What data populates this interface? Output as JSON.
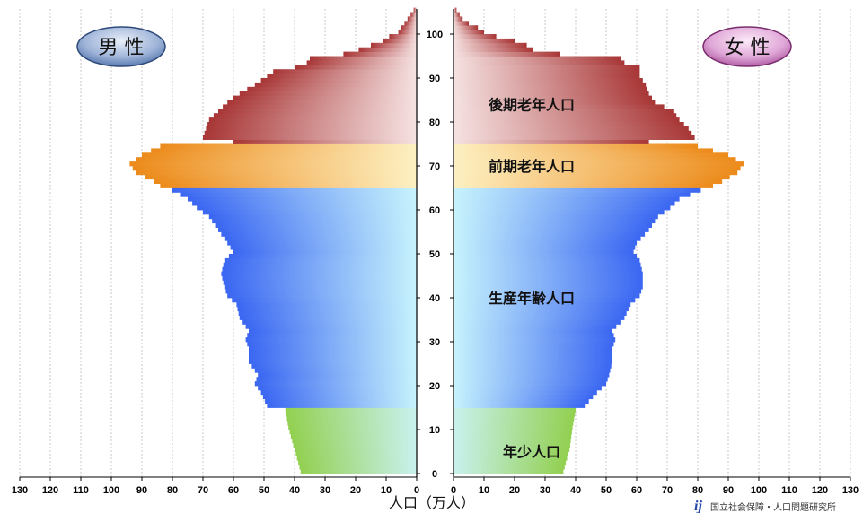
{
  "chart_data": {
    "type": "bar",
    "orientation": "horizontal-population-pyramid",
    "xlabel": "人口（万人）",
    "x_ticks_left": [
      "130",
      "120",
      "110",
      "100",
      "90",
      "80",
      "70",
      "60",
      "50",
      "40",
      "30",
      "20",
      "10",
      "0"
    ],
    "x_ticks_right": [
      "0",
      "10",
      "20",
      "30",
      "40",
      "50",
      "60",
      "70",
      "80",
      "90",
      "100",
      "110",
      "120",
      "130"
    ],
    "y_ticks": [
      "0",
      "10",
      "20",
      "30",
      "40",
      "50",
      "60",
      "70",
      "80",
      "90",
      "100"
    ],
    "xlim": [
      0,
      130
    ],
    "ylim": [
      0,
      105
    ],
    "grid": "vertical-dashed",
    "left_badge": "男 性",
    "right_badge": "女 性",
    "groups": [
      {
        "label": "年少人口",
        "age_from": 0,
        "age_to": 14,
        "color": "#92d050",
        "light": "#c9f1ee"
      },
      {
        "label": "生産年齢人口",
        "age_from": 15,
        "age_to": 64,
        "color": "#3a66f2",
        "light": "#c7f3fd"
      },
      {
        "label": "前期老年人口",
        "age_from": 65,
        "age_to": 74,
        "color": "#ec8a1a",
        "light": "#fdf0c2"
      },
      {
        "label": "後期老年人口",
        "age_from": 75,
        "age_to": 105,
        "color": "#a83636",
        "light": "#f6e2e2"
      }
    ],
    "series": [
      {
        "name": "男 性",
        "side": "left",
        "ages": [
          0,
          5,
          10,
          14,
          15,
          18,
          20,
          22,
          25,
          28,
          30,
          32,
          35,
          38,
          40,
          42,
          45,
          48,
          50,
          52,
          55,
          58,
          60,
          62,
          64,
          65,
          66,
          68,
          70,
          72,
          74,
          75,
          76,
          78,
          80,
          82,
          84,
          86,
          88,
          90,
          91,
          92,
          93,
          94,
          95,
          96,
          97,
          98,
          99,
          100,
          101,
          102,
          103,
          104,
          105
        ],
        "values": [
          38,
          40,
          42,
          43,
          49,
          51,
          53,
          52,
          55,
          55,
          56,
          55,
          58,
          59,
          62,
          63,
          64,
          63,
          60,
          62,
          65,
          68,
          72,
          75,
          80,
          84,
          86,
          92,
          94,
          90,
          84,
          60,
          70,
          69,
          68,
          65,
          62,
          58,
          53,
          49,
          47,
          40,
          36,
          35,
          24,
          19,
          15,
          11,
          9,
          6,
          5,
          4,
          3,
          2,
          1
        ]
      },
      {
        "name": "女 性",
        "side": "right",
        "ages": [
          0,
          5,
          10,
          14,
          15,
          18,
          20,
          22,
          25,
          28,
          30,
          32,
          35,
          38,
          40,
          42,
          45,
          48,
          50,
          52,
          55,
          58,
          60,
          62,
          64,
          65,
          66,
          68,
          70,
          72,
          74,
          75,
          76,
          78,
          80,
          82,
          84,
          86,
          88,
          90,
          91,
          92,
          93,
          94,
          95,
          96,
          97,
          98,
          99,
          100,
          101,
          102,
          103,
          104,
          105
        ],
        "values": [
          36,
          38,
          39,
          40,
          43,
          47,
          50,
          51,
          52,
          52,
          53,
          52,
          56,
          58,
          61,
          62,
          62,
          61,
          59,
          60,
          64,
          67,
          71,
          74,
          81,
          85,
          88,
          93,
          95,
          90,
          80,
          64,
          79,
          77,
          74,
          72,
          66,
          64,
          63,
          61,
          61,
          61,
          56,
          55,
          35,
          26,
          24,
          20,
          14,
          10,
          8,
          5,
          3,
          2,
          1
        ]
      }
    ]
  },
  "credit": "国立社会保障・人口問題研究所",
  "credit_mark": "ij"
}
